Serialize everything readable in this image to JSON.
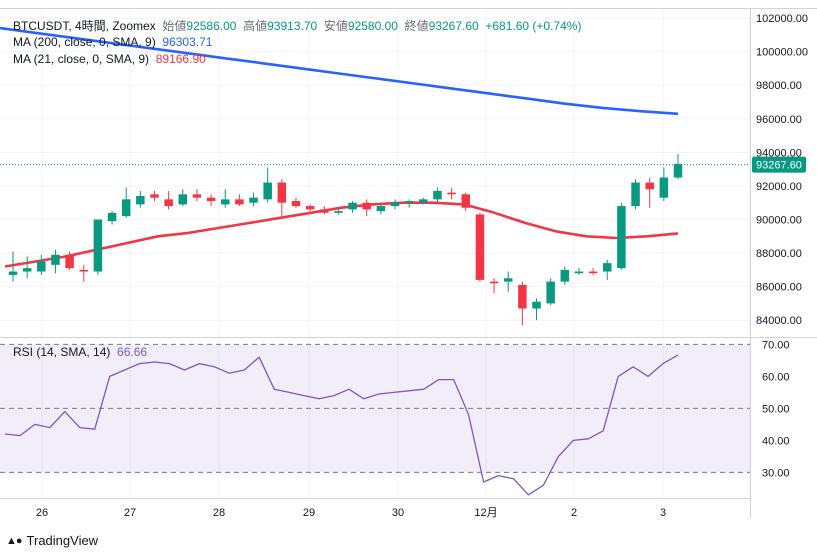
{
  "header": {
    "symbol": "BTCUSDT, 4時間, Zoomex",
    "open_label": "始値",
    "open": "92586.00",
    "high_label": "高値",
    "high": "93913.70",
    "low_label": "安値",
    "low": "92580.00",
    "close_label": "終値",
    "close": "93267.60",
    "change": "+681.60 (+0.74%)"
  },
  "indicators": {
    "ma200": {
      "label": "MA (200, close, 0, SMA, 9)",
      "value": "96303.71"
    },
    "ma21": {
      "label": "MA (21, close, 0, SMA, 9)",
      "value": "89166.90"
    },
    "rsi": {
      "label": "RSI (14, SMA, 14)",
      "value": "66.66"
    }
  },
  "branding": {
    "name": "TradingView"
  },
  "colors": {
    "up": "#089981",
    "down": "#f23645",
    "ma200": "#2962ff",
    "ma21": "#f23645",
    "rsi": "#7e57c2"
  },
  "chart_data": {
    "type": "candlestick",
    "title": "BTCUSDT, 4時間, Zoomex",
    "price_axis": {
      "ylim": [
        83000,
        102600
      ],
      "ticks": [
        "84000.00",
        "86000.00",
        "88000.00",
        "90000.00",
        "92000.00",
        "94000.00",
        "96000.00",
        "98000.00",
        "100000.00",
        "102000.00"
      ]
    },
    "time_axis": {
      "labels": [
        "26",
        "27",
        "28",
        "29",
        "30",
        "12月",
        "2",
        "3"
      ]
    },
    "last_price": "93267.60",
    "candles": [
      {
        "o": 86700,
        "h": 88100,
        "l": 86300,
        "c": 86900
      },
      {
        "o": 86900,
        "h": 87800,
        "l": 86500,
        "c": 87100
      },
      {
        "o": 86900,
        "h": 87900,
        "l": 86700,
        "c": 87500
      },
      {
        "o": 87300,
        "h": 88200,
        "l": 86800,
        "c": 87900
      },
      {
        "o": 87900,
        "h": 88100,
        "l": 87000,
        "c": 87100
      },
      {
        "o": 87000,
        "h": 87300,
        "l": 86300,
        "c": 86900
      },
      {
        "o": 86900,
        "h": 90000,
        "l": 86700,
        "c": 90000
      },
      {
        "o": 89900,
        "h": 90500,
        "l": 89700,
        "c": 90400
      },
      {
        "o": 90200,
        "h": 91900,
        "l": 90100,
        "c": 91200
      },
      {
        "o": 90900,
        "h": 91700,
        "l": 90700,
        "c": 91400
      },
      {
        "o": 91500,
        "h": 91700,
        "l": 91100,
        "c": 91300
      },
      {
        "o": 91200,
        "h": 91700,
        "l": 90600,
        "c": 90800
      },
      {
        "o": 90900,
        "h": 91800,
        "l": 90800,
        "c": 91500
      },
      {
        "o": 91500,
        "h": 91800,
        "l": 91100,
        "c": 91300
      },
      {
        "o": 91300,
        "h": 91500,
        "l": 90800,
        "c": 91100
      },
      {
        "o": 90900,
        "h": 91800,
        "l": 90700,
        "c": 91200
      },
      {
        "o": 91200,
        "h": 91500,
        "l": 90800,
        "c": 90900
      },
      {
        "o": 91000,
        "h": 91600,
        "l": 90800,
        "c": 91300
      },
      {
        "o": 91200,
        "h": 93100,
        "l": 91000,
        "c": 92200
      },
      {
        "o": 92200,
        "h": 92400,
        "l": 90200,
        "c": 91000
      },
      {
        "o": 91100,
        "h": 91300,
        "l": 90700,
        "c": 90800
      },
      {
        "o": 90800,
        "h": 90900,
        "l": 90500,
        "c": 90600
      },
      {
        "o": 90600,
        "h": 90800,
        "l": 90300,
        "c": 90400
      },
      {
        "o": 90400,
        "h": 90600,
        "l": 90300,
        "c": 90500
      },
      {
        "o": 90600,
        "h": 91100,
        "l": 90400,
        "c": 91000
      },
      {
        "o": 91000,
        "h": 91200,
        "l": 90200,
        "c": 90600
      },
      {
        "o": 90500,
        "h": 91000,
        "l": 90300,
        "c": 90800
      },
      {
        "o": 90800,
        "h": 91200,
        "l": 90600,
        "c": 91000
      },
      {
        "o": 91000,
        "h": 91200,
        "l": 90700,
        "c": 91100
      },
      {
        "o": 91000,
        "h": 91300,
        "l": 90900,
        "c": 91200
      },
      {
        "o": 91200,
        "h": 91900,
        "l": 91000,
        "c": 91700
      },
      {
        "o": 91600,
        "h": 91900,
        "l": 91200,
        "c": 91500
      },
      {
        "o": 91500,
        "h": 91600,
        "l": 90500,
        "c": 90700
      },
      {
        "o": 90300,
        "h": 90400,
        "l": 86300,
        "c": 86400
      },
      {
        "o": 86300,
        "h": 86500,
        "l": 85600,
        "c": 86200
      },
      {
        "o": 86300,
        "h": 86900,
        "l": 85700,
        "c": 86500
      },
      {
        "o": 86100,
        "h": 86300,
        "l": 83700,
        "c": 84700
      },
      {
        "o": 84700,
        "h": 85300,
        "l": 84000,
        "c": 85100
      },
      {
        "o": 85000,
        "h": 86500,
        "l": 84900,
        "c": 86300
      },
      {
        "o": 86300,
        "h": 87200,
        "l": 86100,
        "c": 87000
      },
      {
        "o": 86800,
        "h": 87100,
        "l": 86700,
        "c": 86900
      },
      {
        "o": 86900,
        "h": 87100,
        "l": 86700,
        "c": 86800
      },
      {
        "o": 86900,
        "h": 87600,
        "l": 86400,
        "c": 87400
      },
      {
        "o": 87100,
        "h": 91000,
        "l": 87000,
        "c": 90800
      },
      {
        "o": 90800,
        "h": 92400,
        "l": 90600,
        "c": 92200
      },
      {
        "o": 92200,
        "h": 92500,
        "l": 90700,
        "c": 91800
      },
      {
        "o": 91300,
        "h": 93100,
        "l": 91100,
        "c": 92500
      },
      {
        "o": 92500,
        "h": 93900,
        "l": 92400,
        "c": 93300
      }
    ],
    "ma200": [
      101400,
      101100,
      100800,
      100500,
      100200,
      99900,
      99600,
      99300,
      99000,
      98700,
      98400,
      98100,
      97800,
      97500,
      97200,
      96900,
      96650,
      96450,
      96300
    ],
    "ma21": [
      87200,
      87500,
      87800,
      88200,
      88600,
      89000,
      89200,
      89500,
      89800,
      90100,
      90400,
      90700,
      90900,
      91000,
      91000,
      90900,
      90400,
      89800,
      89300,
      89000,
      88900,
      89000,
      89170
    ],
    "rsi": {
      "label": "RSI (14, SMA, 14)",
      "ylim": [
        22,
        72
      ],
      "ticks": [
        "30.00",
        "40.00",
        "50.00",
        "60.00",
        "70.00"
      ],
      "bands": [
        30,
        50,
        70
      ],
      "values": [
        42,
        41.5,
        45,
        44,
        49,
        44,
        43.5,
        60,
        62,
        64,
        64.5,
        64,
        62,
        64,
        63,
        61,
        62,
        66,
        56,
        55,
        54,
        53,
        54,
        56,
        53,
        54.5,
        55,
        55.5,
        56,
        59,
        59,
        48,
        27,
        29,
        28,
        23,
        26,
        35,
        40,
        40.5,
        43,
        60,
        63,
        60,
        64,
        66.66
      ]
    }
  }
}
